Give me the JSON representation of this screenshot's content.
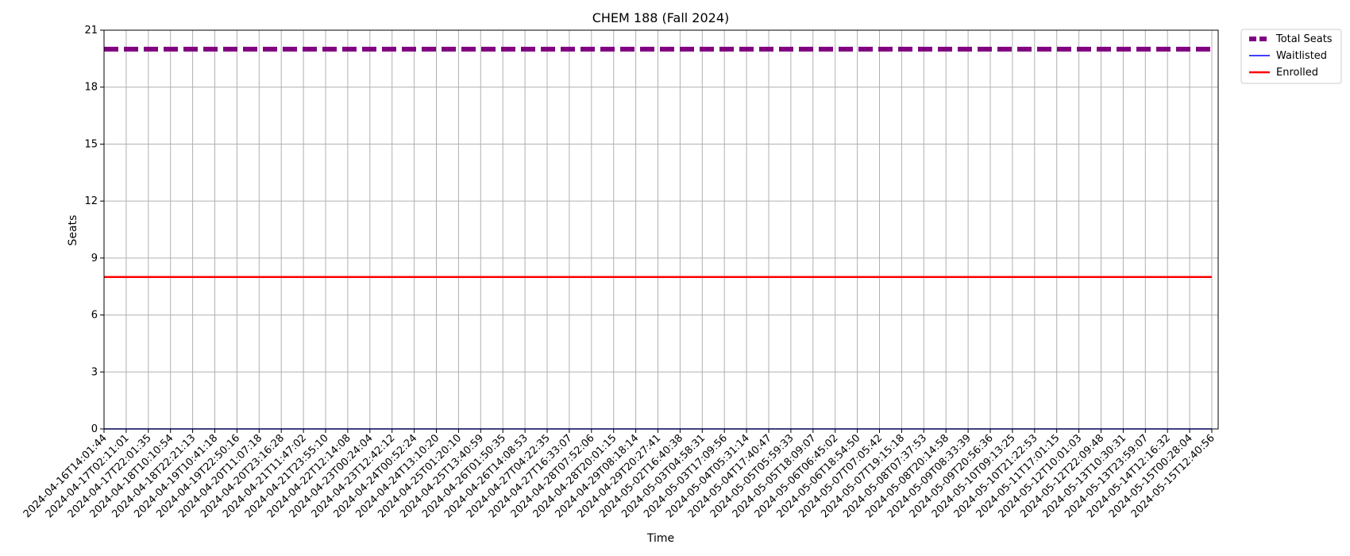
{
  "chart_data": {
    "type": "line",
    "title": "CHEM 188 (Fall 2024)",
    "xlabel": "Time",
    "ylabel": "Seats",
    "ylim": [
      0,
      21
    ],
    "yticks": [
      0,
      3,
      6,
      9,
      12,
      15,
      18,
      21
    ],
    "grid": true,
    "legend_position": "outside-top-right",
    "x": [
      "2024-04-16T14:01:44",
      "2024-04-17T02:11:01",
      "2024-04-17T22:01:35",
      "2024-04-18T10:10:54",
      "2024-04-18T22:21:13",
      "2024-04-19T10:41:18",
      "2024-04-19T22:50:16",
      "2024-04-20T11:07:18",
      "2024-04-20T23:16:28",
      "2024-04-21T11:47:02",
      "2024-04-21T23:55:10",
      "2024-04-22T12:14:08",
      "2024-04-23T00:24:04",
      "2024-04-23T12:42:12",
      "2024-04-24T00:52:24",
      "2024-04-24T13:10:20",
      "2024-04-25T01:20:10",
      "2024-04-25T13:40:59",
      "2024-04-26T01:50:35",
      "2024-04-26T14:08:53",
      "2024-04-27T04:22:35",
      "2024-04-27T16:33:07",
      "2024-04-28T07:52:06",
      "2024-04-28T20:01:15",
      "2024-04-29T08:18:14",
      "2024-04-29T20:27:41",
      "2024-05-02T16:40:38",
      "2024-05-03T04:58:31",
      "2024-05-03T17:09:56",
      "2024-05-04T05:31:14",
      "2024-05-04T17:40:47",
      "2024-05-05T05:59:33",
      "2024-05-05T18:09:07",
      "2024-05-06T06:45:02",
      "2024-05-06T18:54:50",
      "2024-05-07T07:05:42",
      "2024-05-07T19:15:18",
      "2024-05-08T07:37:53",
      "2024-05-08T20:14:58",
      "2024-05-09T08:33:39",
      "2024-05-09T20:56:36",
      "2024-05-10T09:13:25",
      "2024-05-10T21:22:53",
      "2024-05-11T17:01:15",
      "2024-05-12T10:01:03",
      "2024-05-12T22:09:48",
      "2024-05-13T10:30:31",
      "2024-05-13T23:59:07",
      "2024-05-14T12:16:32",
      "2024-05-15T00:28:04",
      "2024-05-15T12:40:56"
    ],
    "series": [
      {
        "name": "Total Seats",
        "value": 20,
        "color": "#800080",
        "style": "dashed"
      },
      {
        "name": "Waitlisted",
        "value": 0,
        "color": "#0000ff",
        "style": "solid"
      },
      {
        "name": "Enrolled",
        "value": 8,
        "color": "#ff0000",
        "style": "solid"
      }
    ]
  }
}
